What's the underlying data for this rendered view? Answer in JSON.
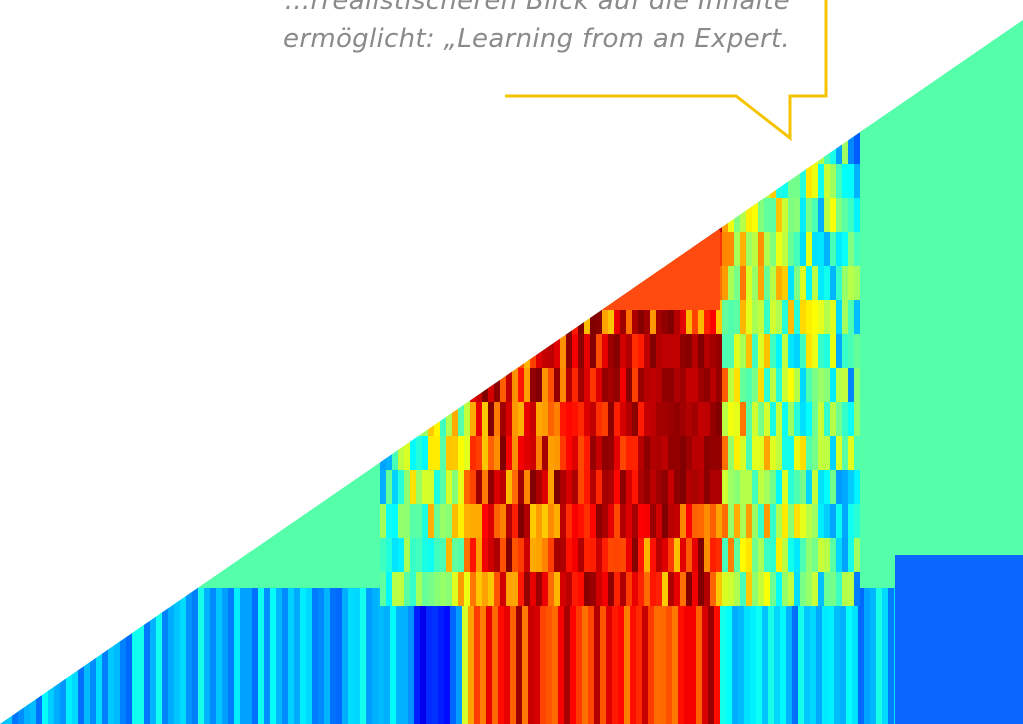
{
  "quote": {
    "line1": "...rrealistischeren Blick auf die Inhalte",
    "line2": "ermöglicht: „Learning from an Expert."
  },
  "colors": {
    "bubble_border": "#f5c400",
    "text": "#8a8a8a",
    "background": "#ffffff",
    "mint": "#55ffaa",
    "blue": "#0a66ff"
  },
  "graphic": {
    "description": "diagonal heatmap-style color band (jet colormap) filling lower-right triangle"
  }
}
